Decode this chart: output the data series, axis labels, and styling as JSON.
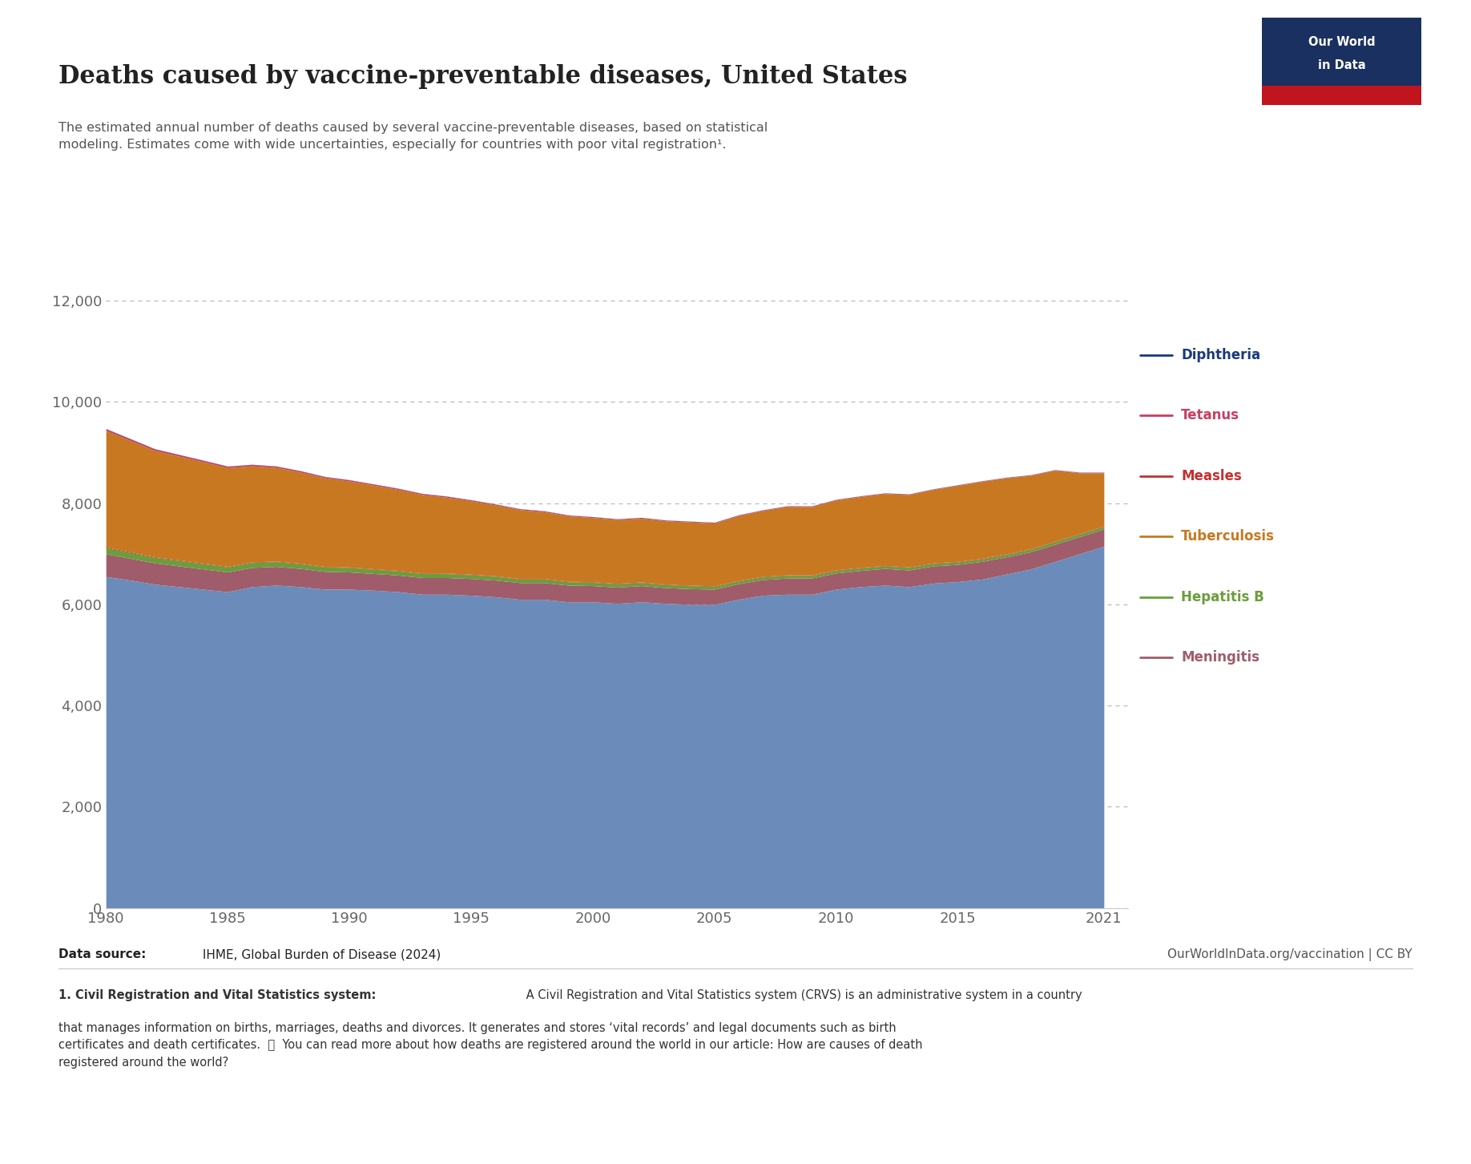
{
  "title": "Deaths caused by vaccine-preventable diseases, United States",
  "subtitle": "The estimated annual number of deaths caused by several vaccine-preventable diseases, based on statistical\nmodeling. Estimates come with wide uncertainties, especially for countries with poor vital registration¹.",
  "footnote_bold": "1. Civil Registration and Vital Statistics system:",
  "footnote_rest": " A Civil Registration and Vital Statistics system (CRVS) is an administrative system in a country\nthat manages information on births, marriages, deaths and divorces. It generates and stores ‘vital records’ and legal documents such as birth\ncertificates and death certificates.  📎  You can read more about how deaths are registered around the world in our article: How are causes of death\nregistered around the world?",
  "source_bold": "Data source:",
  "source_rest": " IHME, Global Burden of Disease (2024)",
  "website": "OurWorldInData.org/vaccination | CC BY",
  "years": [
    1980,
    1981,
    1982,
    1983,
    1984,
    1985,
    1986,
    1987,
    1988,
    1989,
    1990,
    1991,
    1992,
    1993,
    1994,
    1995,
    1996,
    1997,
    1998,
    1999,
    2000,
    2001,
    2002,
    2003,
    2004,
    2005,
    2006,
    2007,
    2008,
    2009,
    2010,
    2011,
    2012,
    2013,
    2014,
    2015,
    2016,
    2017,
    2018,
    2019,
    2020,
    2021
  ],
  "cervical_cancer": [
    6550,
    6480,
    6400,
    6350,
    6300,
    6250,
    6350,
    6380,
    6350,
    6300,
    6300,
    6280,
    6250,
    6200,
    6200,
    6180,
    6150,
    6100,
    6100,
    6050,
    6050,
    6020,
    6050,
    6020,
    6000,
    6000,
    6100,
    6180,
    6200,
    6200,
    6300,
    6350,
    6380,
    6350,
    6420,
    6450,
    6500,
    6600,
    6700,
    6850,
    7000,
    7150
  ],
  "meningitis": [
    450,
    430,
    420,
    410,
    400,
    390,
    380,
    370,
    360,
    350,
    340,
    330,
    330,
    330,
    330,
    330,
    330,
    330,
    330,
    330,
    320,
    320,
    320,
    310,
    310,
    300,
    310,
    310,
    320,
    320,
    320,
    320,
    330,
    330,
    340,
    340,
    350,
    340,
    340,
    340,
    340,
    340
  ],
  "hepatitis_b": [
    120,
    115,
    110,
    108,
    105,
    100,
    98,
    95,
    92,
    90,
    88,
    85,
    82,
    80,
    78,
    76,
    74,
    72,
    70,
    68,
    66,
    64,
    62,
    60,
    58,
    56,
    55,
    54,
    53,
    52,
    51,
    50,
    50,
    50,
    50,
    50,
    50,
    50,
    50,
    50,
    50,
    50
  ],
  "measles": [
    15,
    14,
    13,
    12,
    12,
    11,
    11,
    11,
    11,
    10,
    10,
    10,
    10,
    10,
    10,
    10,
    10,
    10,
    10,
    10,
    10,
    10,
    10,
    10,
    10,
    10,
    10,
    10,
    10,
    10,
    10,
    10,
    10,
    10,
    10,
    10,
    10,
    10,
    10,
    10,
    10,
    10
  ],
  "tuberculosis": [
    2300,
    2200,
    2100,
    2050,
    2000,
    1950,
    1900,
    1850,
    1800,
    1750,
    1700,
    1650,
    1600,
    1550,
    1500,
    1450,
    1400,
    1360,
    1320,
    1290,
    1270,
    1260,
    1260,
    1250,
    1250,
    1240,
    1280,
    1300,
    1350,
    1350,
    1380,
    1400,
    1420,
    1430,
    1450,
    1500,
    1520,
    1500,
    1450,
    1400,
    1200,
    1050
  ],
  "tetanus": [
    35,
    33,
    31,
    30,
    29,
    28,
    27,
    26,
    25,
    24,
    23,
    22,
    21,
    20,
    20,
    19,
    18,
    17,
    17,
    16,
    16,
    15,
    15,
    15,
    14,
    14,
    13,
    13,
    13,
    12,
    12,
    12,
    11,
    11,
    11,
    11,
    10,
    10,
    10,
    10,
    10,
    10
  ],
  "diphtheria": [
    5,
    5,
    4,
    4,
    4,
    4,
    3,
    3,
    3,
    3,
    3,
    3,
    3,
    3,
    3,
    3,
    3,
    3,
    3,
    3,
    3,
    3,
    3,
    3,
    3,
    3,
    3,
    3,
    3,
    3,
    3,
    3,
    3,
    3,
    3,
    3,
    3,
    3,
    3,
    3,
    3,
    3
  ],
  "colors": {
    "cervical_cancer": "#6b8cba",
    "meningitis": "#a05c6a",
    "hepatitis_b": "#6a9e3a",
    "measles": "#c43030",
    "tuberculosis": "#c87820",
    "tetanus": "#c84060",
    "diphtheria": "#1a3a7a"
  },
  "ylim": [
    0,
    13000
  ],
  "yticks": [
    0,
    2000,
    4000,
    6000,
    8000,
    10000,
    12000
  ],
  "ytick_labels": [
    "0",
    "2,000",
    "4,000",
    "6,000",
    "8,000",
    "10,000",
    "12,000"
  ],
  "xlim": [
    1980,
    2022
  ],
  "xticks": [
    1980,
    1985,
    1990,
    1995,
    2000,
    2005,
    2010,
    2015,
    2021
  ],
  "background_color": "#ffffff",
  "grid_color": "#bbbbbb",
  "title_color": "#222222",
  "subtitle_color": "#555555",
  "tick_color": "#666666"
}
